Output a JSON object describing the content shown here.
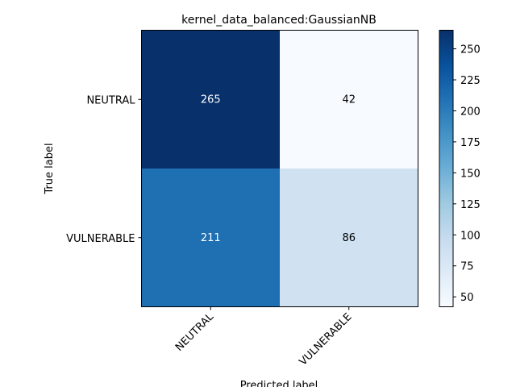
{
  "chart_data": {
    "type": "heatmap",
    "title": "kernel_data_balanced:GaussianNB",
    "xlabel": "Predicted label",
    "ylabel": "True label",
    "row_labels": [
      "NEUTRAL",
      "VULNERABLE"
    ],
    "col_labels": [
      "NEUTRAL",
      "VULNERABLE"
    ],
    "values": [
      [
        265,
        42
      ],
      [
        211,
        86
      ]
    ],
    "colormap": "Blues",
    "colorbar": {
      "min": 42,
      "max": 265,
      "ticks": [
        50,
        75,
        100,
        125,
        150,
        175,
        200,
        225,
        250
      ],
      "tick_labels": [
        "50",
        "75",
        "100",
        "125",
        "150",
        "175",
        "200",
        "225",
        "250"
      ]
    },
    "grid": false
  }
}
